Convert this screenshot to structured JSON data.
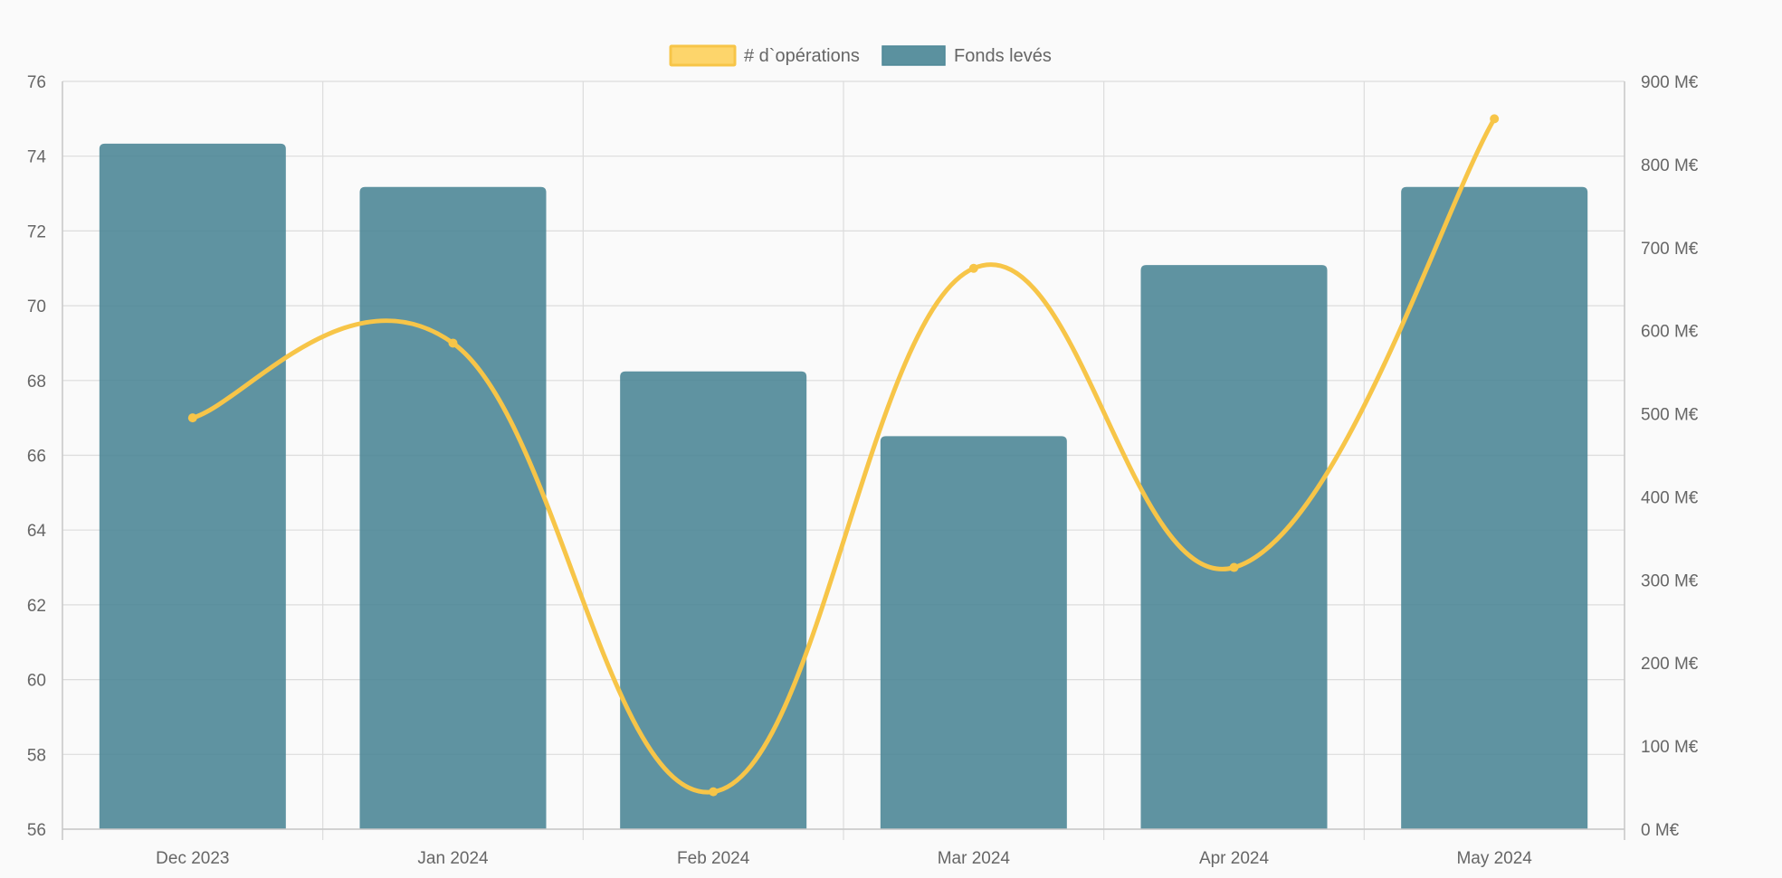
{
  "chart_data": {
    "type": "bar",
    "categories": [
      "Dec 2023",
      "Jan 2024",
      "Feb 2024",
      "Mar 2024",
      "Apr 2024",
      "May 2024"
    ],
    "series": [
      {
        "name": "# d`opérations",
        "type": "line",
        "axis": "left",
        "color": "#f7c548",
        "values": [
          67,
          69,
          57,
          71,
          63,
          75
        ]
      },
      {
        "name": "Fonds levés",
        "type": "bar",
        "axis": "right",
        "color": "#4e8797",
        "values": [
          825,
          773,
          551,
          473,
          679,
          773
        ]
      }
    ],
    "y_left": {
      "min": 56,
      "max": 76,
      "step": 2,
      "ticks": [
        "56",
        "58",
        "60",
        "62",
        "64",
        "66",
        "68",
        "70",
        "72",
        "74",
        "76"
      ]
    },
    "y_right": {
      "min": 0,
      "max": 900,
      "step": 100,
      "ticks": [
        "0 M€",
        "100 M€",
        "200 M€",
        "300 M€",
        "400 M€",
        "500 M€",
        "600 M€",
        "700 M€",
        "800 M€",
        "900 M€"
      ]
    },
    "grid": true,
    "legend_position": "top-center",
    "title": "",
    "xlabel": "",
    "ylabel": ""
  }
}
